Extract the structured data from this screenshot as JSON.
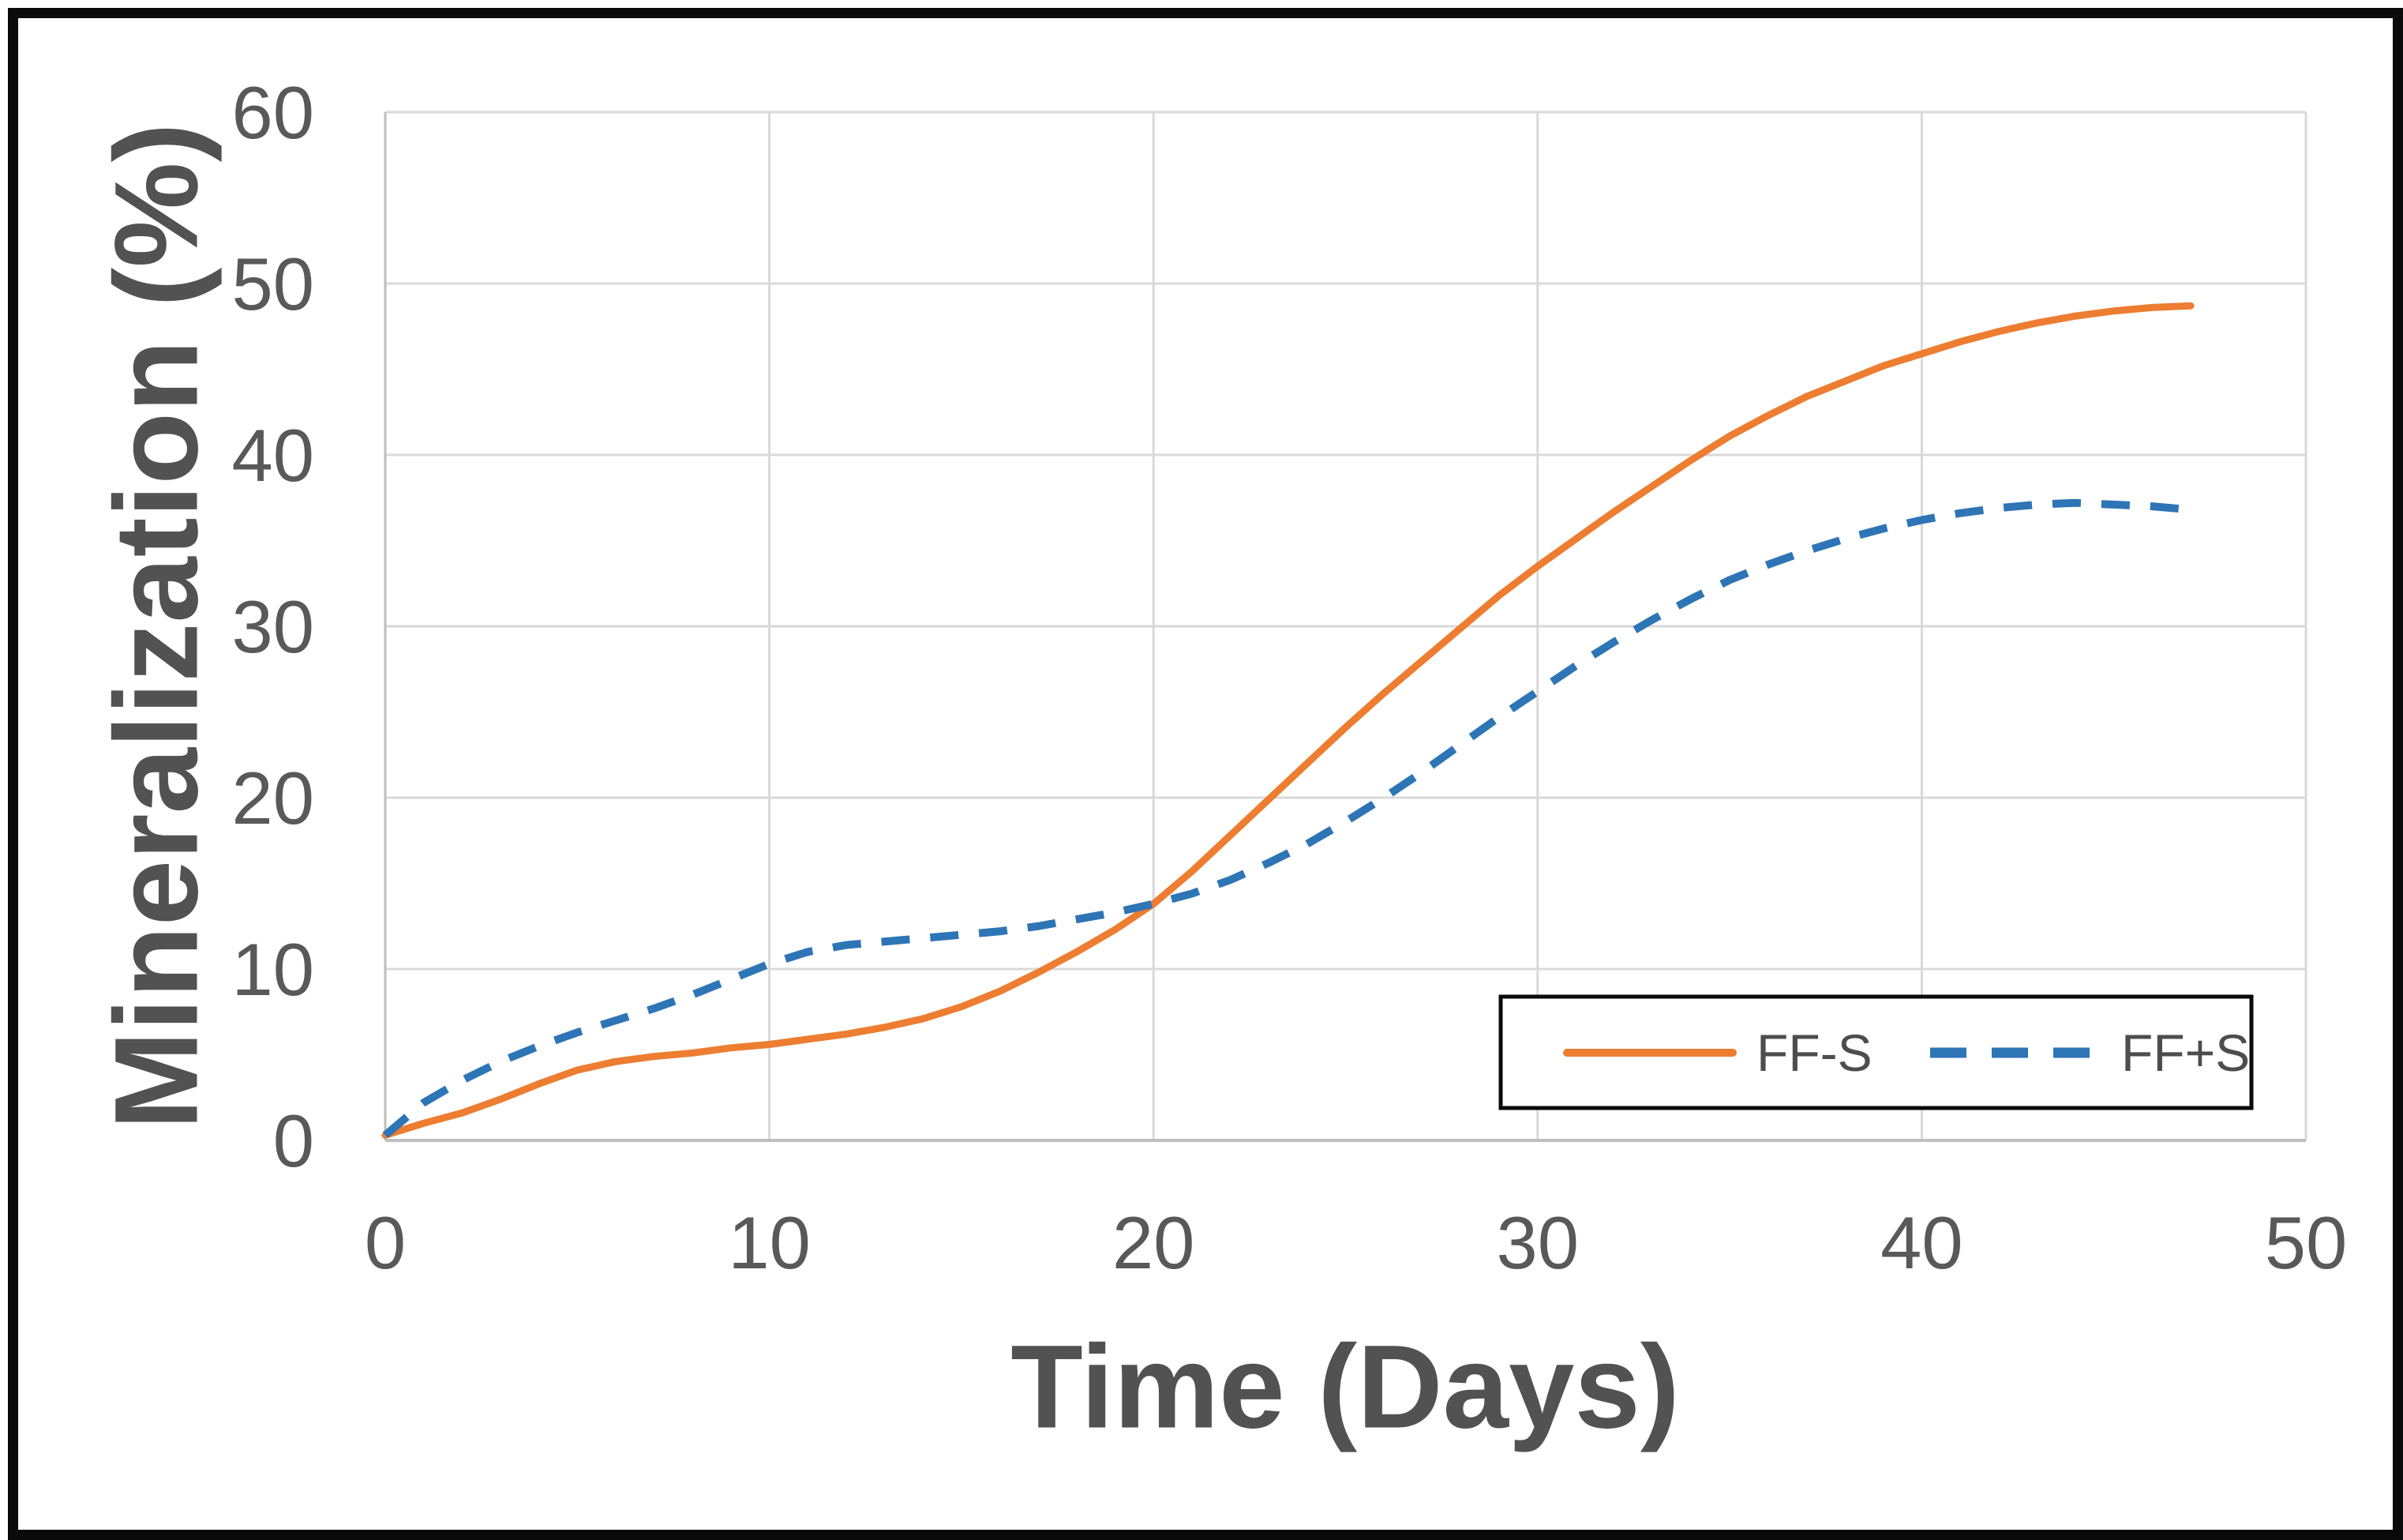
{
  "chart_data": {
    "type": "line",
    "title": "",
    "xlabel": "Time (Days)",
    "ylabel": "Mineralization (%)",
    "xlim": [
      0,
      50
    ],
    "ylim": [
      0,
      60
    ],
    "x_ticks": [
      0,
      10,
      20,
      30,
      40,
      50
    ],
    "y_ticks": [
      0,
      10,
      20,
      30,
      40,
      50,
      60
    ],
    "grid": true,
    "legend_position": "inside-bottom-right",
    "series": [
      {
        "name": "FF-S",
        "style": "solid",
        "color": "#ED7D31",
        "x": [
          0,
          1,
          2,
          3,
          4,
          5,
          6,
          7,
          8,
          9,
          10,
          11,
          12,
          13,
          14,
          15,
          16,
          17,
          18,
          19,
          20,
          21,
          22,
          23,
          24,
          25,
          26,
          27,
          28,
          29,
          30,
          31,
          32,
          33,
          34,
          35,
          36,
          37,
          38,
          39,
          40,
          41,
          42,
          43,
          44,
          45,
          46,
          47
        ],
        "y": [
          0.3,
          1.0,
          1.6,
          2.4,
          3.3,
          4.1,
          4.6,
          4.9,
          5.1,
          5.4,
          5.6,
          5.9,
          6.2,
          6.6,
          7.1,
          7.8,
          8.7,
          9.8,
          11.0,
          12.3,
          13.8,
          15.7,
          17.8,
          19.9,
          22.0,
          24.1,
          26.1,
          28.0,
          29.9,
          31.8,
          33.5,
          35.1,
          36.7,
          38.2,
          39.7,
          41.1,
          42.3,
          43.4,
          44.3,
          45.2,
          45.9,
          46.6,
          47.2,
          47.7,
          48.1,
          48.4,
          48.6,
          48.7
        ]
      },
      {
        "name": "FF+S",
        "style": "dashed",
        "color": "#2E75B6",
        "x": [
          0,
          1,
          2,
          3,
          4,
          5,
          6,
          7,
          8,
          9,
          10,
          11,
          12,
          13,
          14,
          15,
          16,
          17,
          18,
          19,
          20,
          21,
          22,
          23,
          24,
          25,
          26,
          27,
          28,
          29,
          30,
          31,
          32,
          33,
          34,
          35,
          36,
          37,
          38,
          39,
          40,
          41,
          42,
          43,
          44,
          45,
          46,
          47
        ],
        "y": [
          0.3,
          2.2,
          3.5,
          4.6,
          5.5,
          6.3,
          7.0,
          7.7,
          8.5,
          9.4,
          10.3,
          11.0,
          11.4,
          11.6,
          11.8,
          12.0,
          12.2,
          12.5,
          12.9,
          13.3,
          13.8,
          14.4,
          15.2,
          16.2,
          17.3,
          18.6,
          20.0,
          21.5,
          23.1,
          24.7,
          26.2,
          27.7,
          29.1,
          30.4,
          31.6,
          32.7,
          33.6,
          34.4,
          35.1,
          35.7,
          36.2,
          36.6,
          36.9,
          37.1,
          37.2,
          37.1,
          37.0,
          36.8
        ]
      }
    ],
    "colors": {
      "ffs_orange": "#ED7D31",
      "ffps_blue": "#2E75B6",
      "gridline": "#D9D9D9",
      "axis_line": "#BFBFBF",
      "tick_text": "#595959",
      "frame_border": "#0A0A0A"
    }
  },
  "legend": {
    "items": [
      {
        "label": "FF-S"
      },
      {
        "label": "FF+S"
      }
    ]
  }
}
